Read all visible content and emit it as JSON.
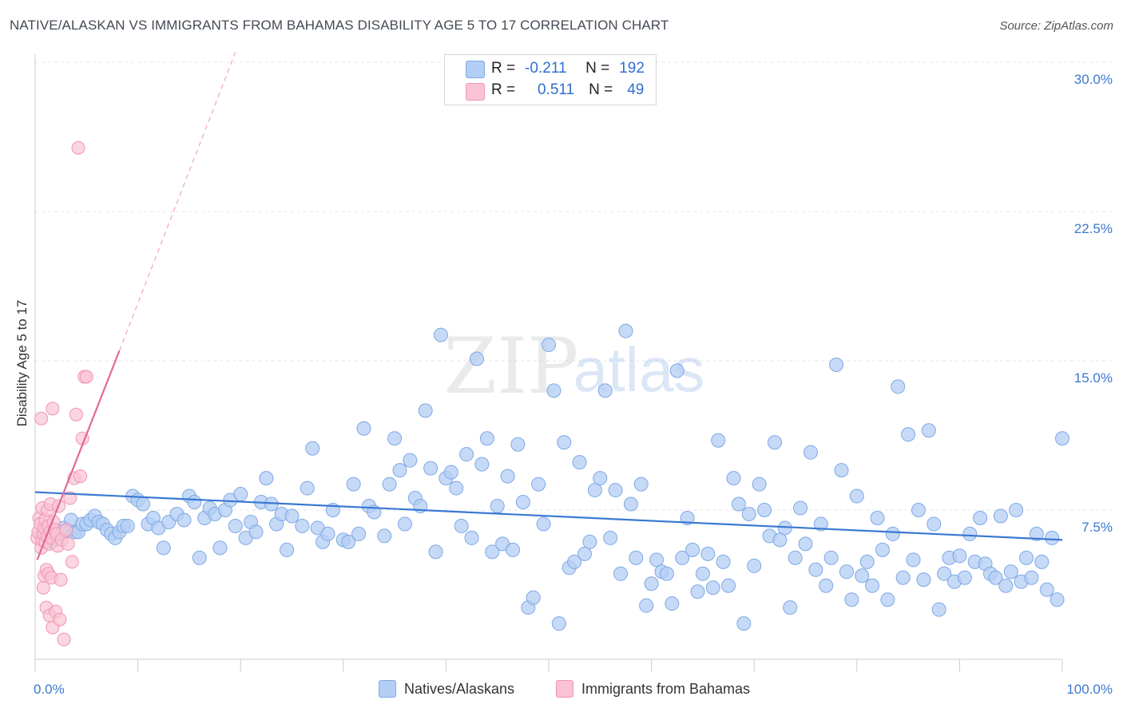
{
  "title": "NATIVE/ALASKAN VS IMMIGRANTS FROM BAHAMAS DISABILITY AGE 5 TO 17 CORRELATION CHART",
  "source": "Source: ZipAtlas.com",
  "watermark": {
    "zip": "ZIP",
    "atlas": "atlas"
  },
  "legend_top": {
    "rows": [
      {
        "r_label": "R =",
        "r_value": "-0.211",
        "n_label": "N =",
        "n_value": "192"
      },
      {
        "r_label": "R =",
        "r_value": "0.511",
        "n_label": "N =",
        "n_value": "49"
      }
    ]
  },
  "colors": {
    "blue_fill": "#b3cef4",
    "blue_stroke": "#7fa8e4",
    "blue_line": "#3a78d3",
    "pink_fill": "#f9c3d3",
    "pink_stroke": "#ef95b3",
    "pink_line": "#e2679a",
    "tick_text": "#3b78d0",
    "grid": "#e3e6ea"
  },
  "chart_data": {
    "type": "scatter",
    "title": "NATIVE/ALASKAN VS IMMIGRANTS FROM BAHAMAS DISABILITY AGE 5 TO 17 CORRELATION CHART",
    "xlabel": "",
    "ylabel": "Disability Age 5 to 17",
    "xlim": [
      0,
      100
    ],
    "ylim": [
      0,
      30
    ],
    "x_tick_labels": [
      "0.0%",
      "100.0%"
    ],
    "y_ticks": [
      7.5,
      15.0,
      22.5,
      30.0
    ],
    "y_tick_labels": [
      "7.5%",
      "15.0%",
      "22.5%",
      "30.0%"
    ],
    "series": [
      {
        "name": "Natives/Alaskans",
        "r": -0.211,
        "n": 192,
        "trend": {
          "x": [
            0,
            100
          ],
          "y": [
            8.4,
            6.0
          ]
        },
        "points": [
          [
            1.0,
            6.2
          ],
          [
            1.3,
            6.0
          ],
          [
            1.6,
            5.9
          ],
          [
            1.9,
            6.2
          ],
          [
            2.2,
            6.3
          ],
          [
            2.5,
            6.4
          ],
          [
            2.8,
            6.6
          ],
          [
            3.1,
            6.5
          ],
          [
            3.5,
            7.0
          ],
          [
            3.9,
            6.4
          ],
          [
            4.2,
            6.4
          ],
          [
            4.6,
            6.8
          ],
          [
            5.0,
            6.8
          ],
          [
            5.4,
            7.0
          ],
          [
            5.8,
            7.2
          ],
          [
            6.2,
            6.9
          ],
          [
            6.6,
            6.8
          ],
          [
            7.0,
            6.5
          ],
          [
            7.4,
            6.3
          ],
          [
            7.8,
            6.1
          ],
          [
            8.2,
            6.4
          ],
          [
            8.6,
            6.7
          ],
          [
            9.0,
            6.7
          ],
          [
            9.5,
            8.2
          ],
          [
            10.0,
            8.0
          ],
          [
            10.5,
            7.8
          ],
          [
            11.0,
            6.8
          ],
          [
            11.5,
            7.1
          ],
          [
            12.0,
            6.6
          ],
          [
            12.5,
            5.6
          ],
          [
            13.0,
            6.9
          ],
          [
            13.8,
            7.3
          ],
          [
            14.5,
            7.0
          ],
          [
            15.0,
            8.2
          ],
          [
            15.5,
            7.9
          ],
          [
            16.0,
            5.1
          ],
          [
            16.5,
            7.1
          ],
          [
            17.0,
            7.6
          ],
          [
            17.5,
            7.3
          ],
          [
            18.0,
            5.6
          ],
          [
            18.5,
            7.5
          ],
          [
            19.0,
            8.0
          ],
          [
            19.5,
            6.7
          ],
          [
            20.0,
            8.3
          ],
          [
            20.5,
            6.1
          ],
          [
            21.0,
            6.9
          ],
          [
            21.5,
            6.4
          ],
          [
            22.0,
            7.9
          ],
          [
            22.5,
            9.1
          ],
          [
            23.0,
            7.8
          ],
          [
            23.5,
            6.8
          ],
          [
            24.0,
            7.3
          ],
          [
            24.5,
            5.5
          ],
          [
            25.0,
            7.2
          ],
          [
            26.0,
            6.7
          ],
          [
            26.5,
            8.6
          ],
          [
            27.0,
            10.6
          ],
          [
            27.5,
            6.6
          ],
          [
            28.0,
            5.9
          ],
          [
            28.5,
            6.3
          ],
          [
            29.0,
            7.5
          ],
          [
            30.0,
            6.0
          ],
          [
            30.5,
            5.9
          ],
          [
            31.0,
            8.8
          ],
          [
            31.5,
            6.3
          ],
          [
            32.0,
            11.6
          ],
          [
            32.5,
            7.7
          ],
          [
            33.0,
            7.4
          ],
          [
            34.0,
            6.2
          ],
          [
            34.5,
            8.8
          ],
          [
            35.0,
            11.1
          ],
          [
            35.5,
            9.5
          ],
          [
            36.0,
            6.8
          ],
          [
            36.5,
            10.0
          ],
          [
            37.0,
            8.1
          ],
          [
            37.5,
            7.7
          ],
          [
            38.0,
            12.5
          ],
          [
            38.5,
            9.6
          ],
          [
            39.0,
            5.4
          ],
          [
            39.5,
            16.3
          ],
          [
            40.0,
            9.1
          ],
          [
            40.5,
            9.4
          ],
          [
            41.0,
            8.6
          ],
          [
            41.5,
            6.7
          ],
          [
            42.0,
            10.3
          ],
          [
            42.5,
            6.1
          ],
          [
            43.0,
            15.1
          ],
          [
            43.5,
            9.8
          ],
          [
            44.0,
            11.1
          ],
          [
            44.5,
            5.4
          ],
          [
            45.0,
            7.7
          ],
          [
            45.5,
            5.8
          ],
          [
            46.0,
            9.2
          ],
          [
            46.5,
            5.5
          ],
          [
            47.0,
            10.8
          ],
          [
            47.5,
            7.9
          ],
          [
            48.0,
            2.6
          ],
          [
            48.5,
            3.1
          ],
          [
            49.0,
            8.8
          ],
          [
            49.5,
            6.8
          ],
          [
            50.0,
            15.8
          ],
          [
            50.5,
            13.5
          ],
          [
            51.0,
            1.8
          ],
          [
            51.5,
            10.9
          ],
          [
            52.0,
            4.6
          ],
          [
            52.5,
            4.9
          ],
          [
            53.0,
            9.9
          ],
          [
            53.5,
            5.3
          ],
          [
            54.0,
            5.9
          ],
          [
            54.5,
            8.5
          ],
          [
            55.0,
            9.1
          ],
          [
            55.5,
            13.5
          ],
          [
            56.0,
            6.1
          ],
          [
            56.5,
            8.5
          ],
          [
            57.0,
            4.3
          ],
          [
            57.5,
            16.5
          ],
          [
            58.0,
            7.8
          ],
          [
            58.5,
            5.1
          ],
          [
            59.0,
            8.8
          ],
          [
            59.5,
            2.7
          ],
          [
            60.0,
            3.8
          ],
          [
            60.5,
            5.0
          ],
          [
            61.0,
            4.4
          ],
          [
            61.5,
            4.3
          ],
          [
            62.0,
            2.8
          ],
          [
            62.5,
            14.5
          ],
          [
            63.0,
            5.1
          ],
          [
            63.5,
            7.1
          ],
          [
            64.0,
            5.5
          ],
          [
            64.5,
            3.4
          ],
          [
            65.0,
            4.3
          ],
          [
            65.5,
            5.3
          ],
          [
            66.0,
            3.6
          ],
          [
            66.5,
            11.0
          ],
          [
            67.0,
            4.9
          ],
          [
            67.5,
            3.7
          ],
          [
            68.0,
            9.1
          ],
          [
            68.5,
            7.8
          ],
          [
            69.0,
            1.8
          ],
          [
            69.5,
            7.3
          ],
          [
            70.0,
            4.7
          ],
          [
            70.5,
            8.8
          ],
          [
            71.0,
            7.5
          ],
          [
            71.5,
            6.2
          ],
          [
            72.0,
            10.9
          ],
          [
            72.5,
            6.0
          ],
          [
            73.0,
            6.6
          ],
          [
            73.5,
            2.6
          ],
          [
            74.0,
            5.1
          ],
          [
            74.5,
            7.6
          ],
          [
            75.0,
            5.8
          ],
          [
            75.5,
            10.4
          ],
          [
            76.0,
            4.5
          ],
          [
            76.5,
            6.8
          ],
          [
            77.0,
            3.7
          ],
          [
            77.5,
            5.1
          ],
          [
            78.0,
            14.8
          ],
          [
            78.5,
            9.5
          ],
          [
            79.0,
            4.4
          ],
          [
            79.5,
            3.0
          ],
          [
            80.0,
            8.2
          ],
          [
            80.5,
            4.2
          ],
          [
            81.0,
            4.9
          ],
          [
            81.5,
            3.7
          ],
          [
            82.0,
            7.1
          ],
          [
            82.5,
            5.5
          ],
          [
            83.0,
            3.0
          ],
          [
            83.5,
            6.3
          ],
          [
            84.0,
            13.7
          ],
          [
            84.5,
            4.1
          ],
          [
            85.0,
            11.3
          ],
          [
            85.5,
            5.0
          ],
          [
            86.0,
            7.5
          ],
          [
            86.5,
            4.0
          ],
          [
            87.0,
            11.5
          ],
          [
            87.5,
            6.8
          ],
          [
            88.0,
            2.5
          ],
          [
            88.5,
            4.3
          ],
          [
            89.0,
            5.1
          ],
          [
            89.5,
            3.9
          ],
          [
            90.0,
            5.2
          ],
          [
            90.5,
            4.1
          ],
          [
            91.0,
            6.3
          ],
          [
            91.5,
            4.9
          ],
          [
            92.0,
            7.1
          ],
          [
            92.5,
            4.8
          ],
          [
            93.0,
            4.3
          ],
          [
            93.5,
            4.1
          ],
          [
            94.0,
            7.2
          ],
          [
            94.5,
            3.7
          ],
          [
            95.0,
            4.4
          ],
          [
            95.5,
            7.5
          ],
          [
            96.0,
            3.9
          ],
          [
            96.5,
            5.1
          ],
          [
            97.0,
            4.1
          ],
          [
            97.5,
            6.3
          ],
          [
            98.0,
            4.9
          ],
          [
            98.5,
            3.5
          ],
          [
            99.0,
            6.1
          ],
          [
            99.5,
            3.0
          ],
          [
            100.0,
            11.1
          ]
        ]
      },
      {
        "name": "Immigrants from Bahamas",
        "r": 0.511,
        "n": 49,
        "trend": {
          "x": [
            0.2,
            8.2
          ],
          "y": [
            5.0,
            15.5
          ]
        },
        "trend_dashed": {
          "x": [
            8.2,
            19.5
          ],
          "y": [
            15.5,
            30.5
          ]
        },
        "points": [
          [
            0.2,
            6.1
          ],
          [
            0.3,
            6.4
          ],
          [
            0.4,
            7.1
          ],
          [
            0.5,
            6.8
          ],
          [
            0.6,
            5.6
          ],
          [
            0.6,
            12.1
          ],
          [
            0.7,
            6.0
          ],
          [
            0.7,
            7.6
          ],
          [
            0.8,
            6.3
          ],
          [
            0.8,
            3.6
          ],
          [
            0.9,
            6.6
          ],
          [
            0.9,
            4.2
          ],
          [
            1.0,
            5.9
          ],
          [
            1.0,
            7.0
          ],
          [
            1.1,
            4.5
          ],
          [
            1.1,
            2.6
          ],
          [
            1.2,
            6.2
          ],
          [
            1.2,
            7.5
          ],
          [
            1.3,
            4.3
          ],
          [
            1.3,
            6.7
          ],
          [
            1.4,
            5.8
          ],
          [
            1.4,
            2.2
          ],
          [
            1.5,
            6.4
          ],
          [
            1.5,
            7.8
          ],
          [
            1.6,
            4.1
          ],
          [
            1.6,
            6.1
          ],
          [
            1.7,
            1.6
          ],
          [
            1.7,
            12.6
          ],
          [
            1.8,
            6.9
          ],
          [
            1.9,
            6.5
          ],
          [
            2.0,
            2.4
          ],
          [
            2.1,
            6.3
          ],
          [
            2.2,
            5.7
          ],
          [
            2.3,
            7.7
          ],
          [
            2.4,
            2.0
          ],
          [
            2.5,
            4.0
          ],
          [
            2.6,
            6.0
          ],
          [
            2.8,
            1.0
          ],
          [
            3.0,
            6.5
          ],
          [
            3.2,
            5.8
          ],
          [
            3.4,
            8.1
          ],
          [
            3.6,
            4.9
          ],
          [
            3.8,
            9.1
          ],
          [
            4.0,
            12.3
          ],
          [
            4.2,
            25.7
          ],
          [
            4.4,
            9.2
          ],
          [
            4.6,
            11.1
          ],
          [
            4.8,
            14.2
          ],
          [
            5.0,
            14.2
          ]
        ]
      }
    ]
  },
  "bottom_legend": [
    {
      "label": "Natives/Alaskans"
    },
    {
      "label": "Immigrants from Bahamas"
    }
  ]
}
